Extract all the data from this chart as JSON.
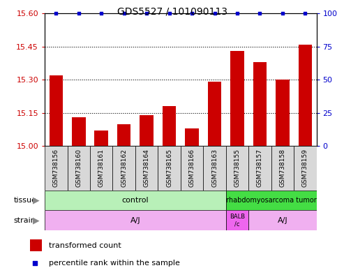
{
  "title": "GDS5527 / 101090113",
  "samples": [
    "GSM738156",
    "GSM738160",
    "GSM738161",
    "GSM738162",
    "GSM738164",
    "GSM738165",
    "GSM738166",
    "GSM738163",
    "GSM738155",
    "GSM738157",
    "GSM738158",
    "GSM738159"
  ],
  "bar_values": [
    15.32,
    15.13,
    15.07,
    15.1,
    15.14,
    15.18,
    15.08,
    15.29,
    15.43,
    15.38,
    15.3,
    15.46
  ],
  "percentile_values": [
    100,
    100,
    100,
    100,
    100,
    100,
    100,
    100,
    100,
    100,
    100,
    100
  ],
  "ylim_left": [
    15.0,
    15.6
  ],
  "ylim_right": [
    0,
    100
  ],
  "yticks_left": [
    15.0,
    15.15,
    15.3,
    15.45,
    15.6
  ],
  "yticks_right": [
    0,
    25,
    50,
    75,
    100
  ],
  "bar_color": "#cc0000",
  "percentile_color": "#0000cc",
  "tissue_control_color": "#b8f0b8",
  "tissue_tumor_color": "#44dd44",
  "strain_aj_color": "#f0b0f0",
  "strain_balb_color": "#ee66ee",
  "tissue_label": "tissue",
  "strain_label": "strain",
  "legend_bar_label": "transformed count",
  "legend_pct_label": "percentile rank within the sample",
  "background_color": "#ffffff",
  "plot_bg_color": "#ffffff",
  "xlabel_bg_color": "#d8d8d8",
  "dotted_lines": [
    15.15,
    15.3,
    15.45
  ]
}
